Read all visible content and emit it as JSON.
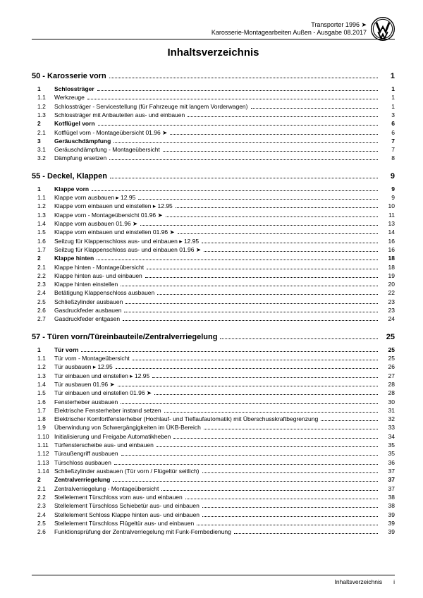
{
  "header": {
    "line1": "Transporter 1996 ➤",
    "line2": "Karosserie-Montagearbeiten Außen - Ausgabe 08.2017"
  },
  "title": "Inhaltsverzeichnis",
  "sections": [
    {
      "heading": "50 - Karosserie vorn",
      "page": "1",
      "items": [
        {
          "n": "1",
          "t": "Schlossträger",
          "p": "1",
          "bold": true
        },
        {
          "n": "1.1",
          "t": "Werkzeuge",
          "p": "1"
        },
        {
          "n": "1.2",
          "t": "Schlossträger - Servicestellung (für Fahrzeuge mit langem Vorderwagen)",
          "p": "1"
        },
        {
          "n": "1.3",
          "t": "Schlossträger mit Anbauteilen aus- und einbauen",
          "p": "3"
        },
        {
          "n": "2",
          "t": "Kotflügel vorn",
          "p": "6",
          "bold": true
        },
        {
          "n": "2.1",
          "t": "Kotflügel vorn - Montageübersicht 01.96 ➤",
          "p": "6"
        },
        {
          "n": "3",
          "t": "Geräuschdämpfung",
          "p": "7",
          "bold": true
        },
        {
          "n": "3.1",
          "t": "Geräuschdämpfung - Montageübersicht",
          "p": "7"
        },
        {
          "n": "3.2",
          "t": "Dämpfung ersetzen",
          "p": "8"
        }
      ]
    },
    {
      "heading": "55 - Deckel, Klappen",
      "page": "9",
      "items": [
        {
          "n": "1",
          "t": "Klappe vorn",
          "p": "9",
          "bold": true
        },
        {
          "n": "1.1",
          "t": "Klappe vorn ausbauen ▸ 12.95",
          "p": "9"
        },
        {
          "n": "1.2",
          "t": "Klappe vorn einbauen und einstellen ▸ 12.95",
          "p": "10"
        },
        {
          "n": "1.3",
          "t": "Klappe vorn - Montageübersicht 01.96 ➤",
          "p": "11"
        },
        {
          "n": "1.4",
          "t": "Klappe vorn ausbauen 01.96 ➤",
          "p": "13"
        },
        {
          "n": "1.5",
          "t": "Klappe vorn einbauen und einstellen 01.96 ➤",
          "p": "14"
        },
        {
          "n": "1.6",
          "t": "Seilzug für Klappenschloss aus- und einbauen ▸ 12.95",
          "p": "16"
        },
        {
          "n": "1.7",
          "t": "Seilzug für Klappenschloss aus- und einbauen 01.96 ➤",
          "p": "16"
        },
        {
          "n": "2",
          "t": "Klappe hinten",
          "p": "18",
          "bold": true
        },
        {
          "n": "2.1",
          "t": "Klappe hinten - Montageübersicht",
          "p": "18"
        },
        {
          "n": "2.2",
          "t": "Klappe hinten aus- und einbauen",
          "p": "19"
        },
        {
          "n": "2.3",
          "t": "Klappe hinten einstellen",
          "p": "20"
        },
        {
          "n": "2.4",
          "t": "Betätigung Klappenschloss ausbauen",
          "p": "22"
        },
        {
          "n": "2.5",
          "t": "Schließzylinder ausbauen",
          "p": "23"
        },
        {
          "n": "2.6",
          "t": "Gasdruckfeder ausbauen",
          "p": "23"
        },
        {
          "n": "2.7",
          "t": "Gasdruckfeder entgasen",
          "p": "24"
        }
      ]
    },
    {
      "heading": "57 - Türen vorn/Türeinbauteile/Zentralverriegelung",
      "page": "25",
      "items": [
        {
          "n": "1",
          "t": "Tür vorn",
          "p": "25",
          "bold": true
        },
        {
          "n": "1.1",
          "t": "Tür vorn - Montageübersicht",
          "p": "25"
        },
        {
          "n": "1.2",
          "t": "Tür ausbauen ▸ 12.95",
          "p": "26"
        },
        {
          "n": "1.3",
          "t": "Tür einbauen und einstellen ▸ 12.95",
          "p": "27"
        },
        {
          "n": "1.4",
          "t": "Tür ausbauen 01.96 ➤",
          "p": "28"
        },
        {
          "n": "1.5",
          "t": "Tür einbauen und einstellen 01.96 ➤",
          "p": "28"
        },
        {
          "n": "1.6",
          "t": "Fensterheber ausbauen",
          "p": "30"
        },
        {
          "n": "1.7",
          "t": "Elektrische Fensterheber instand setzen",
          "p": "31"
        },
        {
          "n": "1.8",
          "t": "Elektrischer Komfortfensterheber (Hochlauf- und Tieflaufautomatik) mit Überschusskraftbegrenzung",
          "p": "32",
          "wrap": true
        },
        {
          "n": "1.9",
          "t": "Überwindung von Schwergängigkeiten im ÜKB-Bereich",
          "p": "33"
        },
        {
          "n": "1.10",
          "t": "Initialisierung und Freigabe Automatikheben",
          "p": "34"
        },
        {
          "n": "1.11",
          "t": "Türfensterscheibe aus- und einbauen",
          "p": "35"
        },
        {
          "n": "1.12",
          "t": "Türaußengriff ausbauen",
          "p": "35"
        },
        {
          "n": "1.13",
          "t": "Türschloss ausbauen",
          "p": "36"
        },
        {
          "n": "1.14",
          "t": "Schließzylinder ausbauen (Tür vorn / Flügeltür seitlich)",
          "p": "37"
        },
        {
          "n": "2",
          "t": "Zentralverriegelung",
          "p": "37",
          "bold": true
        },
        {
          "n": "2.1",
          "t": "Zentralverriegelung - Montageübersicht",
          "p": "37"
        },
        {
          "n": "2.2",
          "t": "Stellelement Türschloss vorn aus- und einbauen",
          "p": "38"
        },
        {
          "n": "2.3",
          "t": "Stellelement Türschloss Schiebetür aus- und einbauen",
          "p": "38"
        },
        {
          "n": "2.4",
          "t": "Stellelement Schloss Klappe hinten aus- und einbauen",
          "p": "39"
        },
        {
          "n": "2.5",
          "t": "Stellelement Türschloss Flügeltür aus- und einbauen",
          "p": "39"
        },
        {
          "n": "2.6",
          "t": "Funktionsprüfung der Zentralverriegelung mit Funk-Fernbedienung",
          "p": "39"
        }
      ]
    }
  ],
  "footer": {
    "label": "Inhaltsverzeichnis",
    "page": "i"
  }
}
